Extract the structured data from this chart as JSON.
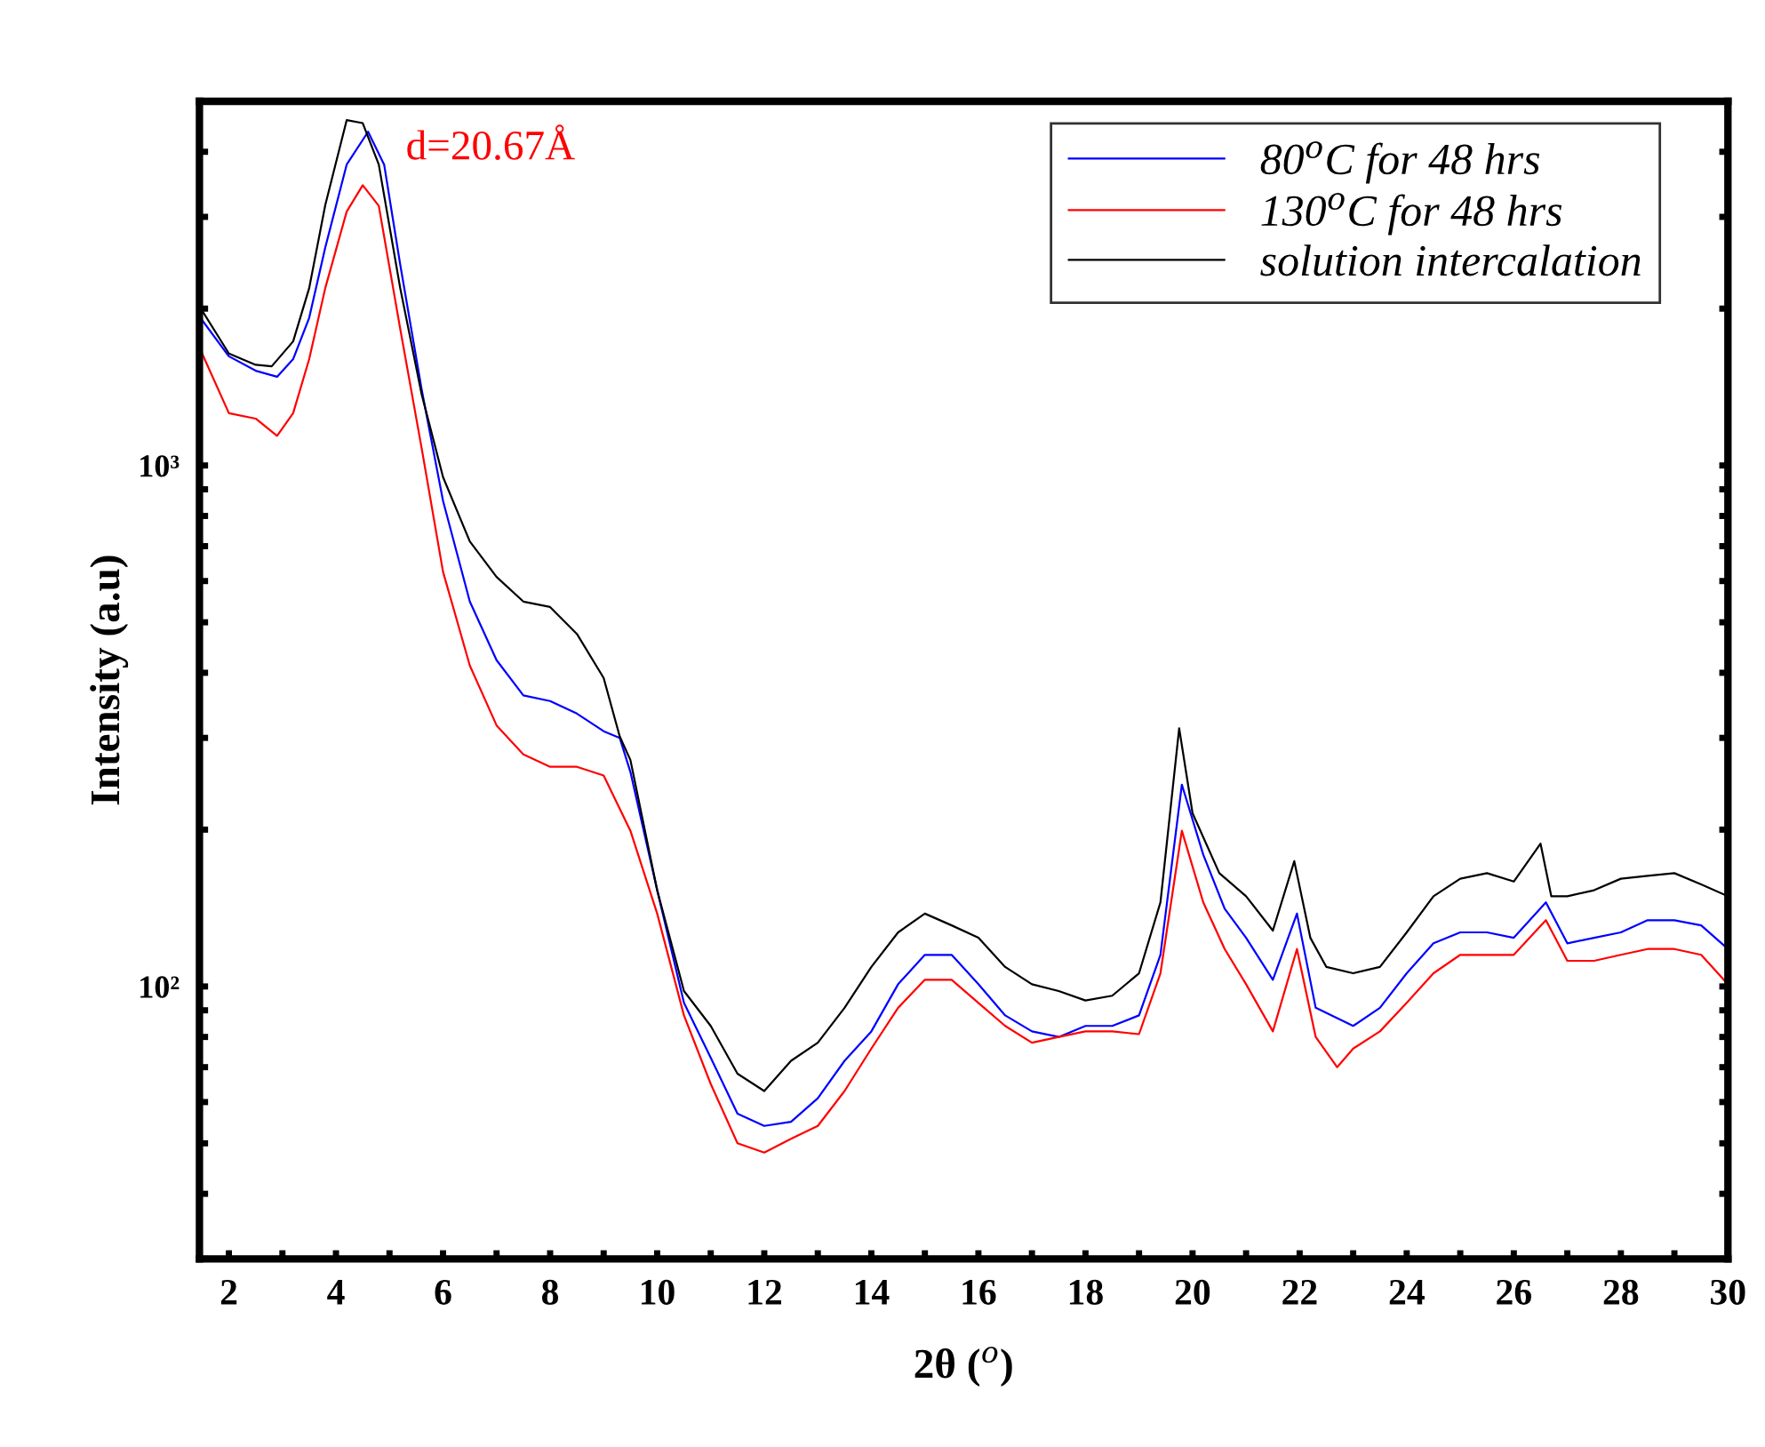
{
  "chart_data": {
    "type": "line",
    "xlabel": "2θ ($^{o}$)",
    "ylabel": "Intensity (a.u)",
    "annotations": [
      "d=20.67Å"
    ],
    "log": "y",
    "grid": false,
    "legend": "top right",
    "xlim": [
      1.45,
      30
    ],
    "ylim": [
      30,
      5000
    ],
    "xticks": [
      2,
      {
        "value": 3,
        "label": null
      },
      4,
      {
        "value": 5,
        "label": null
      },
      6,
      {
        "value": 7,
        "label": null
      },
      8,
      {
        "value": 9,
        "label": null
      },
      10,
      {
        "value": 11,
        "label": null
      },
      12,
      {
        "value": 13,
        "label": null
      },
      14,
      {
        "value": 15,
        "label": null
      },
      16,
      {
        "value": 17,
        "label": null
      },
      18,
      {
        "value": 19,
        "label": null
      },
      20,
      {
        "value": 21,
        "label": null
      },
      22,
      {
        "value": 23,
        "label": null
      },
      24,
      {
        "value": 25,
        "label": null
      },
      26,
      {
        "value": 27,
        "label": null
      },
      28,
      {
        "value": 29,
        "label": null
      },
      30
    ],
    "yticks": [
      {
        "value": 30,
        "label": null
      },
      {
        "value": 40,
        "label": null
      },
      {
        "value": 50,
        "label": null
      },
      {
        "value": 60,
        "label": null
      },
      {
        "value": 70,
        "label": null
      },
      {
        "value": 80,
        "label": null
      },
      {
        "value": 90,
        "label": null
      },
      {
        "value": 100,
        "label": "10²"
      },
      {
        "value": 200,
        "label": null
      },
      {
        "value": 300,
        "label": null
      },
      {
        "value": 400,
        "label": null
      },
      {
        "value": 500,
        "label": null
      },
      {
        "value": 600,
        "label": null
      },
      {
        "value": 700,
        "label": null
      },
      {
        "value": 800,
        "label": null
      },
      {
        "value": 900,
        "label": null
      },
      {
        "value": 1000,
        "label": "10³"
      },
      {
        "value": 2000,
        "label": null
      },
      {
        "value": 3000,
        "label": null
      },
      {
        "value": 4000,
        "label": null
      }
    ],
    "series": [
      {
        "name": "80$^{o}$C for 48 hrs",
        "color": "#0000ff",
        "x": [
          1.5,
          2,
          2.5,
          2.9,
          3.2,
          3.5,
          3.8,
          4.2,
          4.6,
          4.9,
          5.2,
          5.6,
          6.0,
          6.5,
          7.0,
          7.5,
          8.0,
          8.5,
          9.0,
          9.3,
          9.5,
          10,
          10.5,
          11,
          11.5,
          12,
          12.5,
          13,
          13.5,
          14,
          14.5,
          15,
          15.5,
          16,
          16.5,
          17,
          17.5,
          18,
          18.5,
          19,
          19.4,
          19.8,
          20.2,
          20.6,
          21,
          21.5,
          21.95,
          22.3,
          23,
          23.5,
          24,
          24.5,
          25,
          25.5,
          26,
          26.6,
          27,
          27.5,
          28,
          28.5,
          29,
          29.5,
          30
        ],
        "values": [
          1900,
          1620,
          1520,
          1480,
          1600,
          1920,
          2620,
          3780,
          4370,
          3780,
          2430,
          1400,
          855,
          548,
          423,
          362,
          353,
          334,
          309,
          300,
          258,
          153,
          93,
          73,
          57,
          54,
          55,
          61,
          72,
          82,
          101,
          115,
          115,
          101,
          88,
          82,
          80,
          84,
          84,
          88,
          115,
          244,
          179,
          141,
          124,
          103,
          138,
          91,
          84,
          91,
          106,
          121,
          127,
          127,
          124,
          145,
          121,
          124,
          127,
          134,
          134,
          131,
          118
        ]
      },
      {
        "name": "130$^{o}$C for 48 hrs",
        "color": "#ff0000",
        "x": [
          1.5,
          2,
          2.5,
          2.9,
          3.2,
          3.5,
          3.8,
          4.2,
          4.5,
          4.8,
          5.2,
          5.6,
          6.0,
          6.5,
          7.0,
          7.5,
          8.0,
          8.5,
          9.0,
          9.5,
          10,
          10.5,
          11,
          11.5,
          12,
          12.5,
          13,
          13.5,
          14,
          14.5,
          15,
          15.5,
          16,
          16.5,
          17,
          17.5,
          18,
          18.5,
          19,
          19.4,
          19.8,
          20.2,
          20.6,
          21,
          21.5,
          21.95,
          22.3,
          22.7,
          23,
          23.5,
          24,
          24.5,
          25,
          25.5,
          26,
          26.6,
          27,
          27.5,
          28,
          28.5,
          29,
          29.5,
          30
        ],
        "values": [
          1640,
          1260,
          1230,
          1140,
          1260,
          1600,
          2190,
          3070,
          3450,
          3150,
          1830,
          1080,
          625,
          413,
          317,
          279,
          264,
          264,
          254,
          199,
          138,
          88,
          65,
          50,
          48,
          51,
          54,
          63,
          76,
          91,
          103,
          103,
          93,
          84,
          78,
          80,
          82,
          82,
          81,
          106,
          199,
          145,
          118,
          101,
          82,
          118,
          80,
          70,
          76,
          82,
          93,
          106,
          115,
          115,
          115,
          134,
          112,
          112,
          115,
          118,
          118,
          115,
          101
        ]
      },
      {
        "name": "solution intercalation",
        "color": "#000000",
        "x": [
          1.45,
          2,
          2.5,
          2.8,
          3.2,
          3.5,
          3.8,
          4.2,
          4.5,
          4.8,
          5.2,
          5.6,
          6.0,
          6.5,
          7.0,
          7.5,
          8.0,
          8.5,
          9.0,
          9.3,
          9.5,
          10,
          10.5,
          11,
          11.5,
          12,
          12.5,
          13,
          13.5,
          14,
          14.5,
          15,
          15.5,
          16,
          16.5,
          17,
          17.5,
          18,
          18.5,
          19,
          19.4,
          19.75,
          20,
          20.5,
          21,
          21.5,
          21.9,
          22.2,
          22.5,
          23,
          23.5,
          24,
          24.5,
          25,
          25.5,
          26,
          26.5,
          26.7,
          27,
          27.5,
          28,
          28.5,
          29,
          29.5,
          30
        ],
        "values": [
          2020,
          1640,
          1560,
          1550,
          1730,
          2190,
          3160,
          4600,
          4540,
          3780,
          2190,
          1370,
          950,
          715,
          611,
          548,
          535,
          475,
          391,
          302,
          272,
          153,
          98,
          84,
          68,
          63,
          72,
          78,
          91,
          109,
          127,
          138,
          131,
          124,
          109,
          101,
          98,
          94,
          96,
          106,
          145,
          313,
          215,
          165,
          149,
          128,
          174,
          124,
          109,
          106,
          109,
          127,
          149,
          161,
          165,
          159,
          188,
          149,
          149,
          153,
          161,
          163,
          165,
          157,
          149
        ]
      }
    ]
  }
}
